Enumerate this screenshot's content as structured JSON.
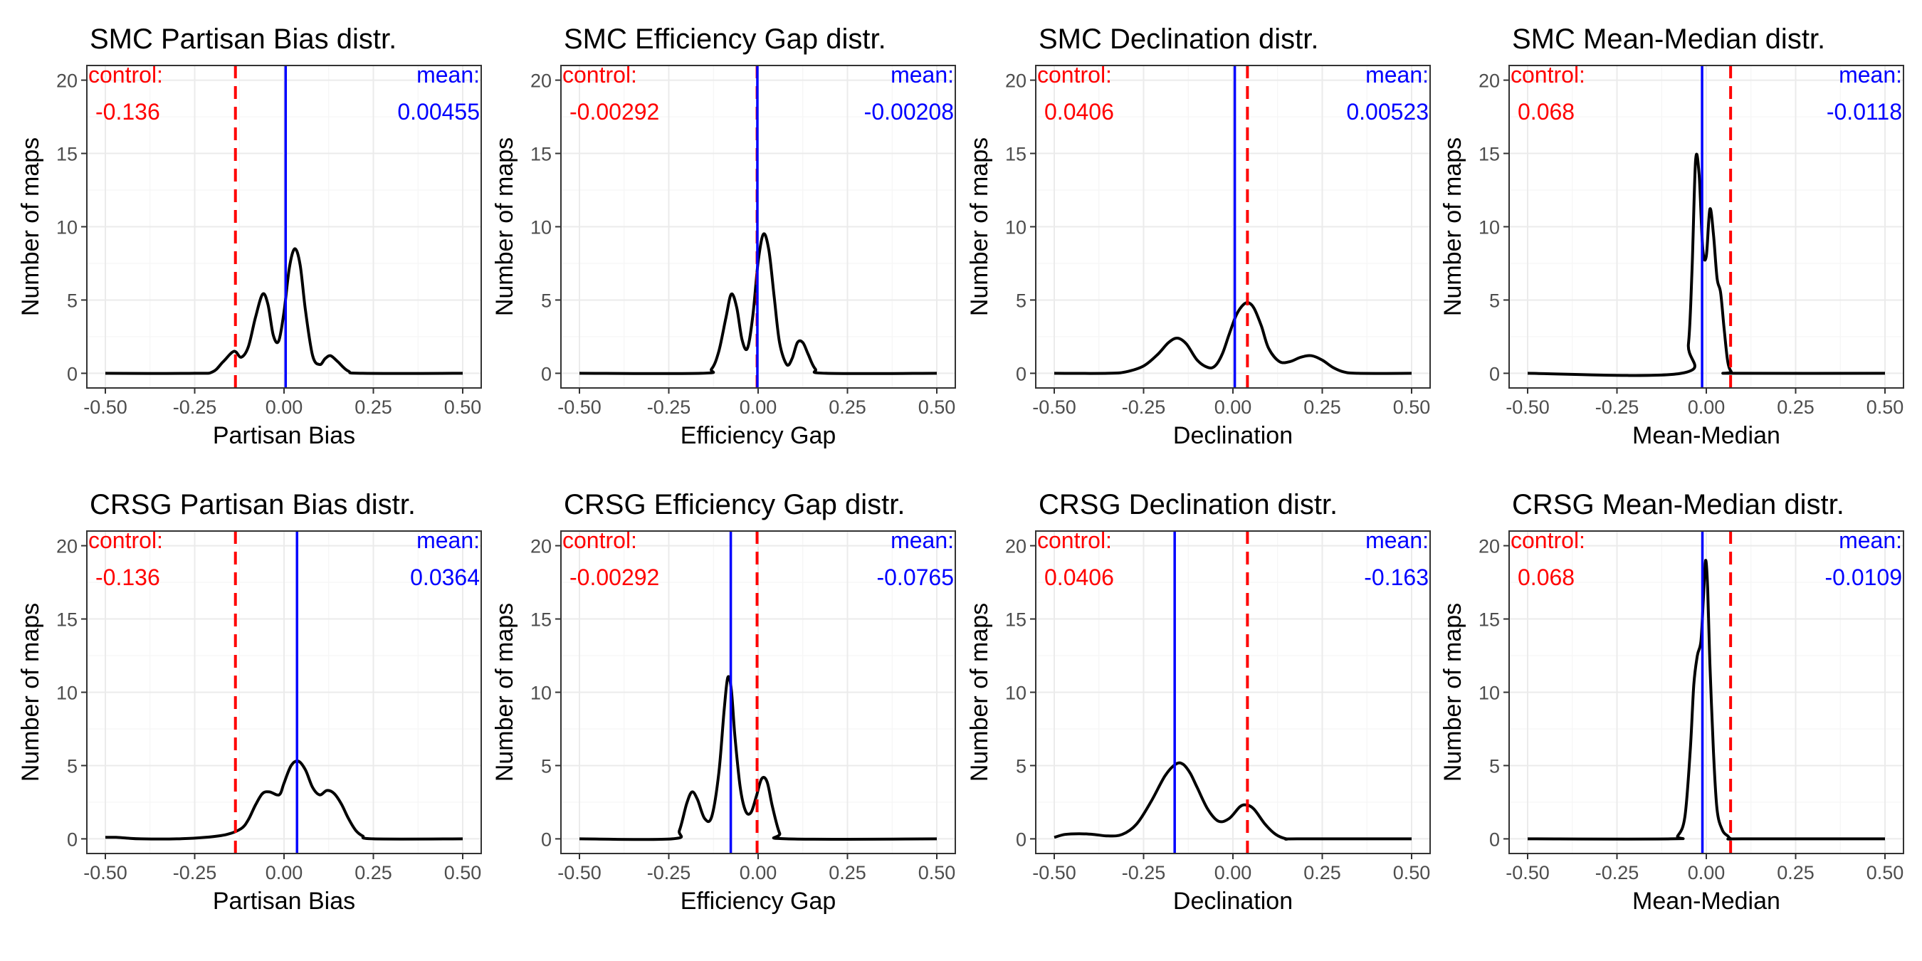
{
  "colors": {
    "control": "#ff0000",
    "mean": "#0000ff",
    "curve": "#000000",
    "grid_major": "#ebebeb",
    "grid_minor": "#f5f5f5",
    "panel_border": "#333333",
    "tick_text": "#4d4d4d"
  },
  "common": {
    "ylabel": "Number of maps",
    "control_label": "control:",
    "mean_label": "mean:",
    "x_ticks": [
      "-0.50",
      "-0.25",
      "0.00",
      "0.25",
      "0.50"
    ],
    "y_ticks": [
      "0",
      "5",
      "10",
      "15",
      "20"
    ]
  },
  "chart_data": [
    {
      "type": "line",
      "title": "SMC Partisan Bias distr.",
      "xlabel": "Partisan Bias",
      "ylabel": "Number of maps",
      "xlim": [
        -0.5,
        0.5
      ],
      "ylim": [
        0,
        20
      ],
      "grid": true,
      "control_value": -0.136,
      "control_text": "-0.136",
      "mean_value": 0.00455,
      "mean_text": "0.00455",
      "series": [
        {
          "x": [
            -0.5,
            -0.25,
            -0.2,
            -0.17,
            -0.14,
            -0.12,
            -0.1,
            -0.08,
            -0.06,
            -0.045,
            -0.03,
            -0.015,
            0,
            0.015,
            0.03,
            0.045,
            0.06,
            0.08,
            0.1,
            0.115,
            0.13,
            0.15,
            0.18,
            0.22,
            0.5
          ],
          "values": [
            0,
            0,
            0.1,
            0.8,
            1.5,
            1.1,
            1.8,
            3.8,
            5.4,
            4.7,
            2.6,
            2.2,
            4.2,
            7.2,
            8.5,
            7.4,
            4.3,
            1.2,
            0.6,
            1.0,
            1.2,
            0.8,
            0.15,
            0,
            0
          ]
        }
      ]
    },
    {
      "type": "line",
      "title": "SMC Efficiency Gap distr.",
      "xlabel": "Efficiency Gap",
      "ylabel": "Number of maps",
      "xlim": [
        -0.5,
        0.5
      ],
      "ylim": [
        0,
        20
      ],
      "grid": true,
      "control_value": -0.00292,
      "control_text": "-0.00292",
      "mean_value": -0.00208,
      "mean_text": "-0.00208",
      "series": [
        {
          "x": [
            -0.5,
            -0.16,
            -0.13,
            -0.11,
            -0.09,
            -0.075,
            -0.06,
            -0.045,
            -0.03,
            -0.015,
            0,
            0.015,
            0.03,
            0.045,
            0.06,
            0.08,
            0.095,
            0.11,
            0.125,
            0.14,
            0.16,
            0.19,
            0.5
          ],
          "values": [
            0,
            0,
            0.3,
            1.5,
            3.8,
            5.4,
            4.5,
            2.3,
            1.7,
            3.9,
            7.6,
            9.5,
            8.4,
            5.2,
            2.1,
            0.6,
            1.0,
            2.1,
            2.1,
            1.3,
            0.3,
            0,
            0
          ]
        }
      ]
    },
    {
      "type": "line",
      "title": "SMC Declination distr.",
      "xlabel": "Declination",
      "ylabel": "Number of maps",
      "xlim": [
        -0.5,
        0.5
      ],
      "ylim": [
        0,
        20
      ],
      "grid": true,
      "control_value": 0.0406,
      "control_text": "0.0406",
      "mean_value": 0.00523,
      "mean_text": "0.00523",
      "series": [
        {
          "x": [
            -0.5,
            -0.35,
            -0.3,
            -0.25,
            -0.21,
            -0.18,
            -0.155,
            -0.13,
            -0.1,
            -0.07,
            -0.05,
            -0.03,
            -0.01,
            0.01,
            0.03,
            0.045,
            0.06,
            0.08,
            0.1,
            0.13,
            0.16,
            0.19,
            0.22,
            0.25,
            0.28,
            0.31,
            0.35,
            0.5
          ],
          "values": [
            0,
            0,
            0.1,
            0.5,
            1.3,
            2.1,
            2.4,
            2.0,
            0.9,
            0.4,
            0.5,
            1.3,
            2.7,
            4.0,
            4.7,
            4.8,
            4.4,
            3.2,
            1.7,
            0.8,
            0.8,
            1.1,
            1.2,
            0.9,
            0.4,
            0.1,
            0,
            0
          ]
        }
      ]
    },
    {
      "type": "line",
      "title": "SMC Mean-Median distr.",
      "xlabel": "Mean-Median",
      "ylabel": "Number of maps",
      "xlim": [
        -0.5,
        0.5
      ],
      "ylim": [
        0,
        20
      ],
      "grid": true,
      "control_value": 0.068,
      "control_text": "0.068",
      "mean_value": -0.0118,
      "mean_text": "-0.0118",
      "series": [
        {
          "x": [
            -0.5,
            -0.07,
            -0.05,
            -0.04,
            -0.03,
            -0.02,
            -0.01,
            0,
            0.01,
            0.02,
            0.03,
            0.04,
            0.05,
            0.06,
            0.07,
            0.08,
            0.5
          ],
          "values": [
            0,
            0,
            2,
            7,
            14.5,
            13.5,
            8.5,
            8,
            11.2,
            9.5,
            6.5,
            5.5,
            3,
            0.8,
            0.1,
            0,
            0
          ]
        }
      ]
    },
    {
      "type": "line",
      "title": "CRSG Partisan Bias distr.",
      "xlabel": "Partisan Bias",
      "ylabel": "Number of maps",
      "xlim": [
        -0.5,
        0.5
      ],
      "ylim": [
        0,
        20
      ],
      "grid": true,
      "control_value": -0.136,
      "control_text": "-0.136",
      "mean_value": 0.0364,
      "mean_text": "0.0364",
      "series": [
        {
          "x": [
            -0.5,
            -0.47,
            -0.44,
            -0.4,
            -0.3,
            -0.22,
            -0.16,
            -0.12,
            -0.1,
            -0.08,
            -0.06,
            -0.04,
            -0.02,
            -0.01,
            0,
            0.02,
            0.04,
            0.06,
            0.08,
            0.1,
            0.12,
            0.14,
            0.16,
            0.18,
            0.2,
            0.22,
            0.25,
            0.5
          ],
          "values": [
            0.1,
            0.1,
            0.05,
            0,
            0,
            0.1,
            0.3,
            0.7,
            1.3,
            2.3,
            3.1,
            3.2,
            3.0,
            3.1,
            3.8,
            5.0,
            5.3,
            4.7,
            3.5,
            3.0,
            3.3,
            3.1,
            2.4,
            1.4,
            0.6,
            0.2,
            0,
            0
          ]
        }
      ]
    },
    {
      "type": "line",
      "title": "CRSG Efficiency Gap distr.",
      "xlabel": "Efficiency Gap",
      "ylabel": "Number of maps",
      "xlim": [
        -0.5,
        0.5
      ],
      "ylim": [
        0,
        20
      ],
      "grid": true,
      "control_value": -0.00292,
      "control_text": "-0.00292",
      "mean_value": -0.0765,
      "mean_text": "-0.0765",
      "series": [
        {
          "x": [
            -0.5,
            -0.24,
            -0.22,
            -0.2,
            -0.185,
            -0.17,
            -0.15,
            -0.13,
            -0.11,
            -0.095,
            -0.085,
            -0.075,
            -0.065,
            -0.05,
            -0.035,
            -0.02,
            -0.005,
            0.01,
            0.025,
            0.04,
            0.06,
            0.08,
            0.5
          ],
          "values": [
            0,
            0,
            0.6,
            2.4,
            3.2,
            2.7,
            1.4,
            1.5,
            4.5,
            8.8,
            11.0,
            10.2,
            7.0,
            3.5,
            1.9,
            1.8,
            2.9,
            4.1,
            3.9,
            2.2,
            0.4,
            0,
            0
          ]
        }
      ]
    },
    {
      "type": "line",
      "title": "CRSG Declination distr.",
      "xlabel": "Declination",
      "ylabel": "Number of maps",
      "xlim": [
        -0.5,
        0.5
      ],
      "ylim": [
        0,
        20
      ],
      "grid": true,
      "control_value": 0.0406,
      "control_text": "0.0406",
      "mean_value": -0.163,
      "mean_text": "-0.163",
      "series": [
        {
          "x": [
            -0.5,
            -0.47,
            -0.43,
            -0.39,
            -0.35,
            -0.31,
            -0.27,
            -0.23,
            -0.19,
            -0.16,
            -0.14,
            -0.12,
            -0.1,
            -0.07,
            -0.04,
            -0.01,
            0.02,
            0.04,
            0.06,
            0.09,
            0.12,
            0.15,
            0.18,
            0.5
          ],
          "values": [
            0.1,
            0.3,
            0.35,
            0.3,
            0.2,
            0.3,
            1.0,
            2.5,
            4.3,
            5.1,
            5.1,
            4.5,
            3.5,
            2.0,
            1.2,
            1.4,
            2.2,
            2.3,
            2.0,
            1.0,
            0.3,
            0,
            0,
            0
          ]
        }
      ]
    },
    {
      "type": "line",
      "title": "CRSG Mean-Median distr.",
      "xlabel": "Mean-Median",
      "ylabel": "Number of maps",
      "xlim": [
        -0.5,
        0.5
      ],
      "ylim": [
        0,
        20
      ],
      "grid": true,
      "control_value": 0.068,
      "control_text": "0.068",
      "mean_value": -0.0109,
      "mean_text": "-0.0109",
      "series": [
        {
          "x": [
            -0.5,
            -0.1,
            -0.08,
            -0.06,
            -0.045,
            -0.035,
            -0.025,
            -0.015,
            -0.008,
            -0.002,
            0.004,
            0.01,
            0.02,
            0.03,
            0.045,
            0.06,
            0.07,
            0.1,
            0.5
          ],
          "values": [
            0,
            0,
            0.2,
            1.5,
            6,
            10.5,
            12.5,
            13.5,
            16.5,
            19,
            17,
            12,
            6,
            2,
            0.6,
            0.2,
            0,
            0,
            0
          ]
        }
      ]
    }
  ]
}
